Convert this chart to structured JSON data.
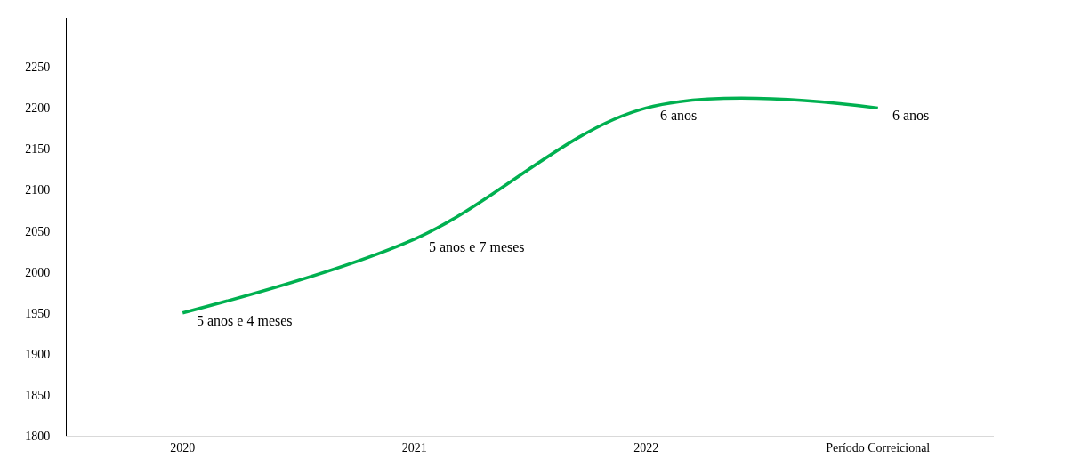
{
  "chart_data": {
    "type": "line",
    "categories": [
      "2020",
      "2021",
      "2022",
      "Período Correicional"
    ],
    "series": [
      {
        "color": "#00b050",
        "values": [
          1950,
          2040,
          2200,
          2200
        ]
      }
    ],
    "annotations": [
      {
        "text": "5 anos e 4 meses",
        "x": "2020",
        "y": 1950
      },
      {
        "text": "5 anos e 7 meses",
        "x": "2021",
        "y": 2040
      },
      {
        "text": "6 anos",
        "x": "2022",
        "y": 2200
      },
      {
        "text": "6 anos",
        "x": "Período Correicional",
        "y": 2200
      }
    ],
    "ylim": [
      1800,
      2310
    ],
    "yticks": [
      1800,
      1850,
      1900,
      1950,
      2000,
      2050,
      2100,
      2150,
      2200,
      2250
    ],
    "legend": false,
    "marker": "none",
    "line_style": "solid"
  }
}
